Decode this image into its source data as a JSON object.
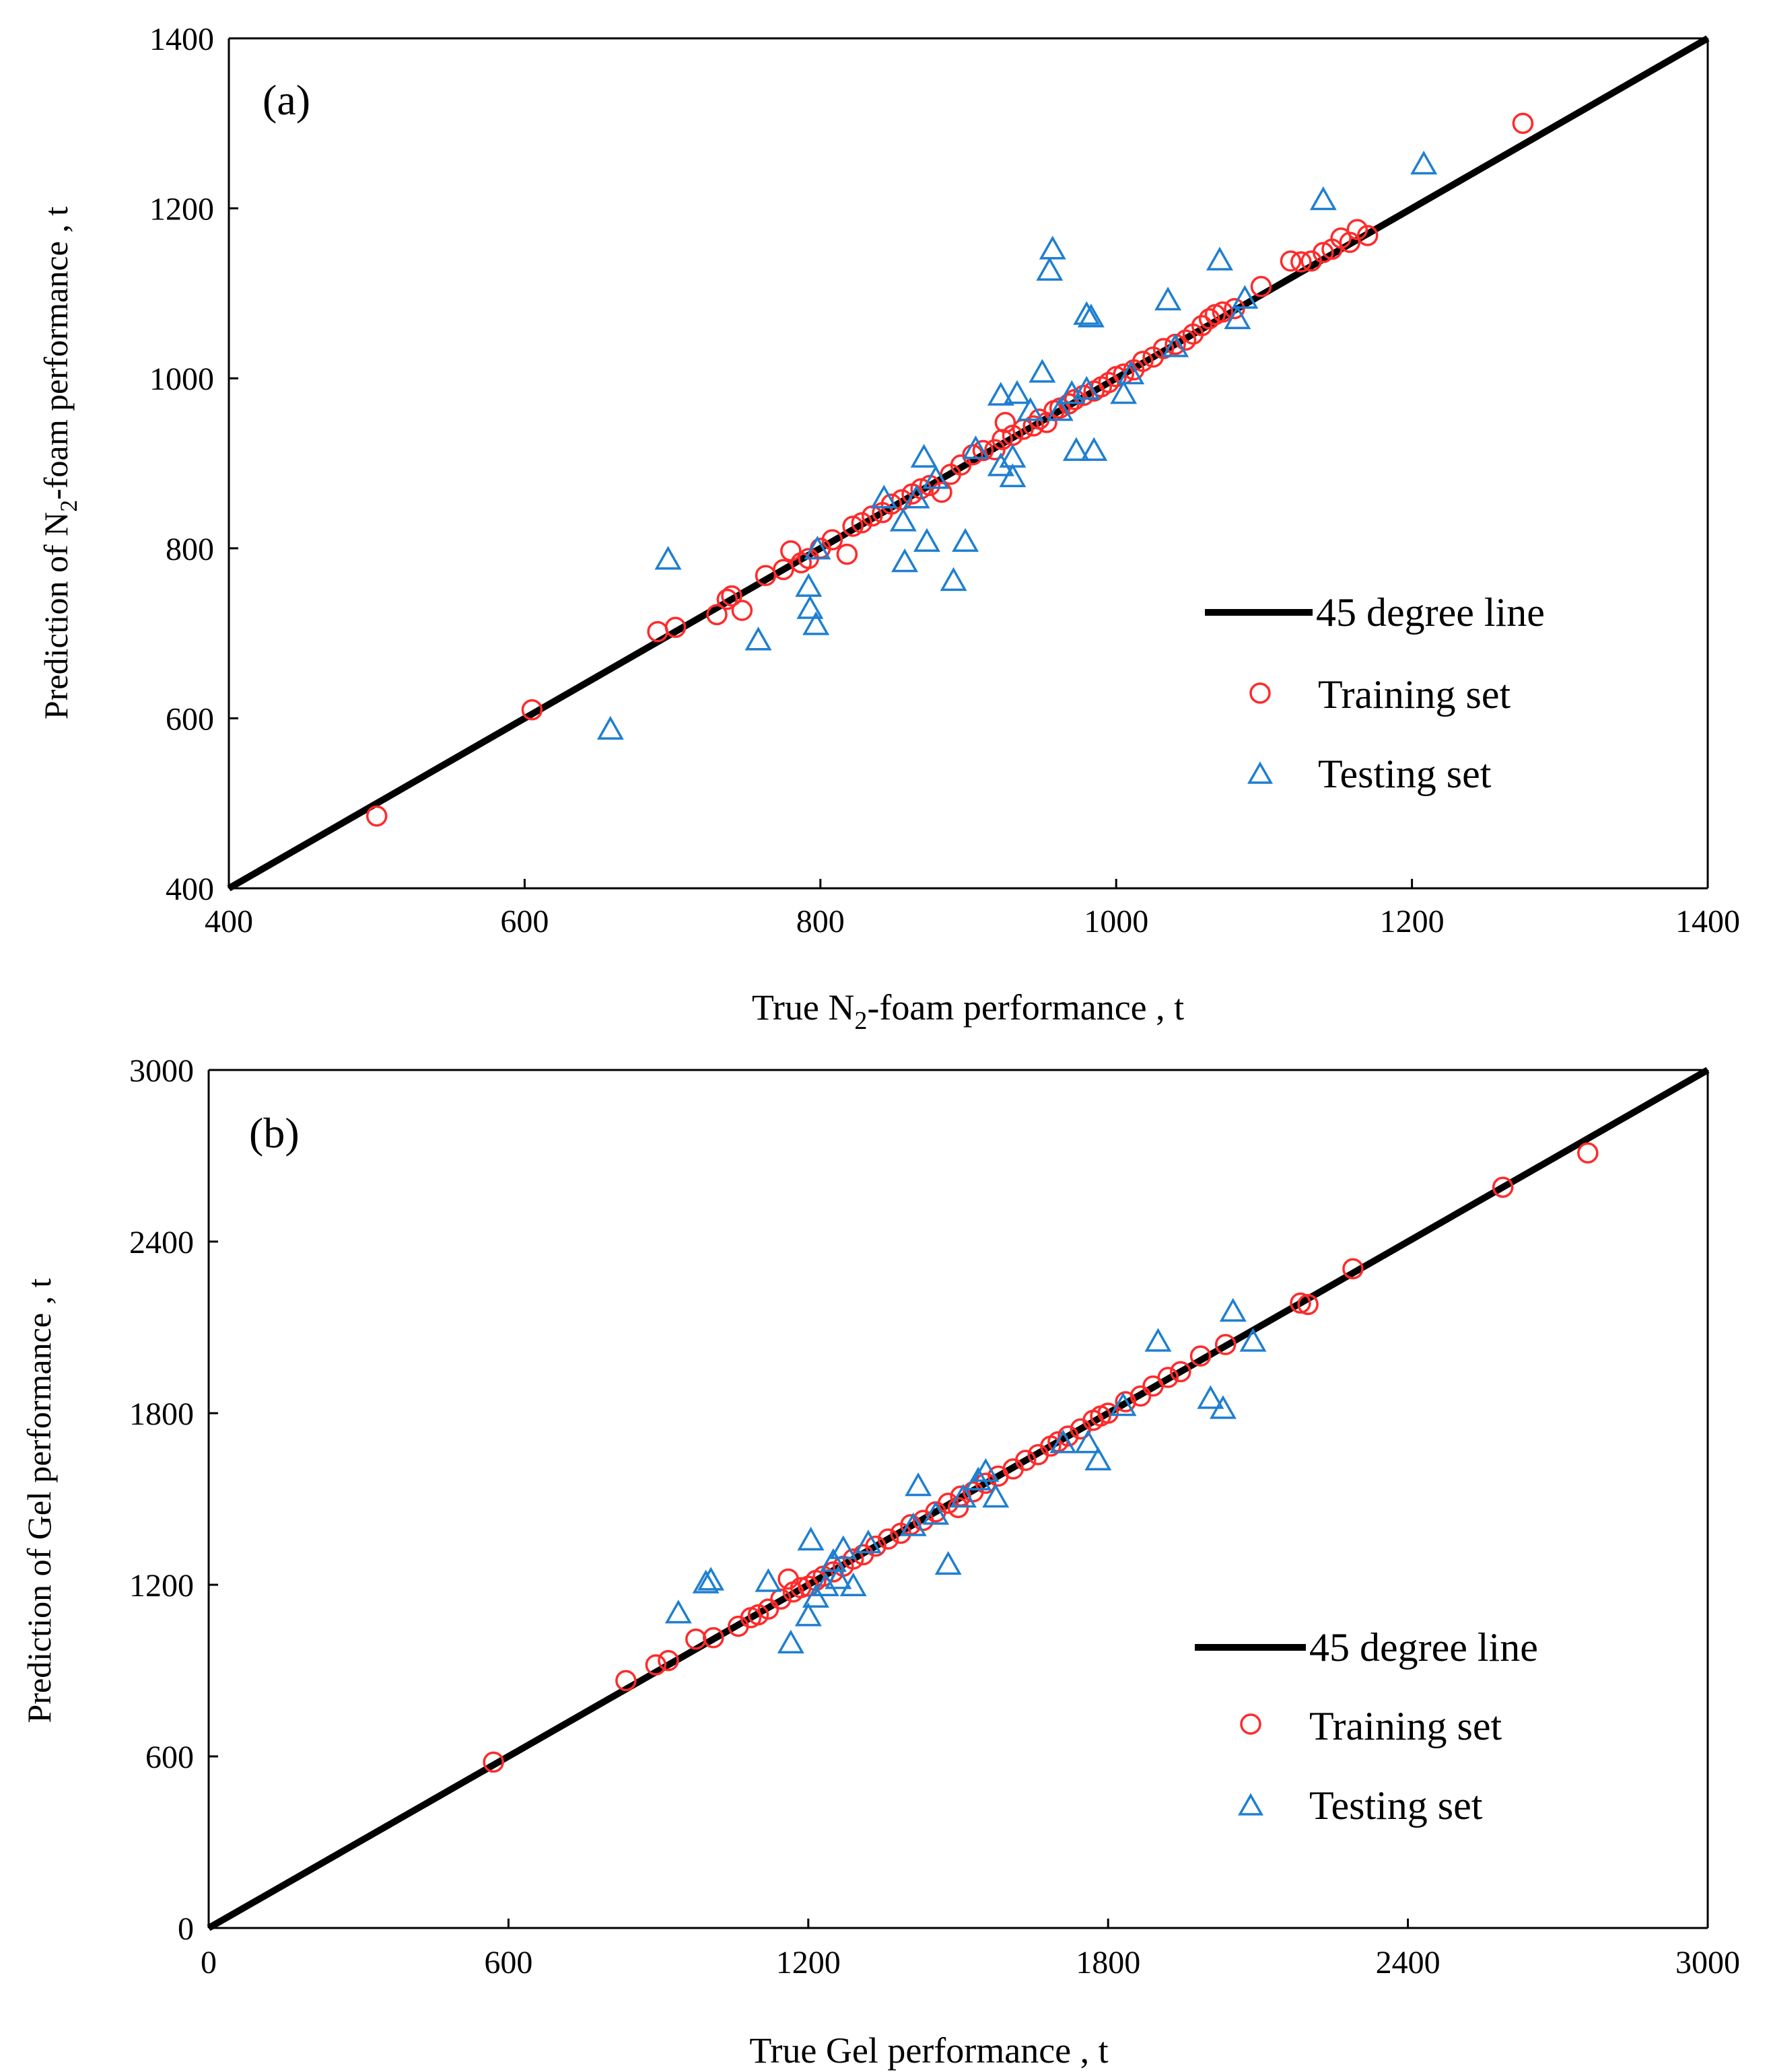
{
  "chart_data": [
    {
      "type": "scatter",
      "panel_label": "(a)",
      "xlabel_prefix": "True N",
      "xlabel_sub": "2",
      "xlabel_suffix": "-foam performance , t",
      "ylabel_prefix": "Prediction of N",
      "ylabel_sub": "2",
      "ylabel_suffix": "-foam performance , t",
      "xlim": [
        400,
        1400
      ],
      "ylim": [
        400,
        1400
      ],
      "xticks": [
        400,
        600,
        800,
        1000,
        1200,
        1400
      ],
      "yticks": [
        400,
        600,
        800,
        1000,
        1200,
        1400
      ],
      "grid": false,
      "legend_position": "lower-right",
      "colors": {
        "line": "#000000",
        "training": "#ff2a2a",
        "testing": "#1e7fd0"
      },
      "line": {
        "name": "45 degree line",
        "x": [
          400,
          1400
        ],
        "y": [
          400,
          1400
        ]
      },
      "series": [
        {
          "name": "Training set",
          "marker": "circle",
          "points": [
            [
              500,
              485
            ],
            [
              605,
              610
            ],
            [
              690,
              702
            ],
            [
              702,
              707
            ],
            [
              730,
              722
            ],
            [
              737,
              740
            ],
            [
              740,
              744
            ],
            [
              747,
              727
            ],
            [
              763,
              768
            ],
            [
              775,
              775
            ],
            [
              780,
              797
            ],
            [
              787,
              783
            ],
            [
              792,
              788
            ],
            [
              800,
              800
            ],
            [
              808,
              810
            ],
            [
              818,
              793
            ],
            [
              822,
              826
            ],
            [
              828,
              830
            ],
            [
              835,
              838
            ],
            [
              842,
              842
            ],
            [
              848,
              852
            ],
            [
              855,
              857
            ],
            [
              862,
              864
            ],
            [
              868,
              870
            ],
            [
              874,
              874
            ],
            [
              882,
              866
            ],
            [
              888,
              887
            ],
            [
              895,
              898
            ],
            [
              903,
              910
            ],
            [
              910,
              915
            ],
            [
              918,
              916
            ],
            [
              923,
              928
            ],
            [
              925,
              948
            ],
            [
              930,
              933
            ],
            [
              937,
              940
            ],
            [
              944,
              944
            ],
            [
              948,
              952
            ],
            [
              953,
              948
            ],
            [
              958,
              962
            ],
            [
              962,
              965
            ],
            [
              968,
              970
            ],
            [
              972,
              975
            ],
            [
              978,
              980
            ],
            [
              985,
              985
            ],
            [
              990,
              990
            ],
            [
              995,
              995
            ],
            [
              1000,
              1002
            ],
            [
              1005,
              1005
            ],
            [
              1012,
              1010
            ],
            [
              1018,
              1020
            ],
            [
              1025,
              1025
            ],
            [
              1032,
              1035
            ],
            [
              1040,
              1040
            ],
            [
              1047,
              1045
            ],
            [
              1052,
              1052
            ],
            [
              1058,
              1062
            ],
            [
              1063,
              1070
            ],
            [
              1067,
              1075
            ],
            [
              1072,
              1078
            ],
            [
              1080,
              1082
            ],
            [
              1098,
              1108
            ],
            [
              1118,
              1138
            ],
            [
              1125,
              1137
            ],
            [
              1132,
              1138
            ],
            [
              1140,
              1148
            ],
            [
              1146,
              1152
            ],
            [
              1152,
              1165
            ],
            [
              1158,
              1160
            ],
            [
              1163,
              1175
            ],
            [
              1170,
              1168
            ],
            [
              1275,
              1300
            ]
          ]
        },
        {
          "name": "Testing set",
          "marker": "triangle",
          "points": [
            [
              658,
              585
            ],
            [
              697,
              785
            ],
            [
              758,
              690
            ],
            [
              792,
              753
            ],
            [
              793,
              727
            ],
            [
              797,
              708
            ],
            [
              798,
              797
            ],
            [
              843,
              857
            ],
            [
              856,
              830
            ],
            [
              857,
              782
            ],
            [
              865,
              857
            ],
            [
              870,
              905
            ],
            [
              872,
              806
            ],
            [
              878,
              880
            ],
            [
              890,
              760
            ],
            [
              898,
              806
            ],
            [
              905,
              915
            ],
            [
              922,
              895
            ],
            [
              922,
              978
            ],
            [
              930,
              905
            ],
            [
              930,
              882
            ],
            [
              933,
              980
            ],
            [
              942,
              960
            ],
            [
              950,
              1005
            ],
            [
              955,
              1125
            ],
            [
              957,
              1150
            ],
            [
              962,
              960
            ],
            [
              970,
              980
            ],
            [
              973,
              913
            ],
            [
              980,
              985
            ],
            [
              980,
              1073
            ],
            [
              983,
              1070
            ],
            [
              985,
              913
            ],
            [
              1005,
              980
            ],
            [
              1010,
              1003
            ],
            [
              1035,
              1090
            ],
            [
              1040,
              1035
            ],
            [
              1070,
              1137
            ],
            [
              1082,
              1068
            ],
            [
              1087,
              1092
            ],
            [
              1140,
              1208
            ],
            [
              1208,
              1250
            ]
          ]
        }
      ]
    },
    {
      "type": "scatter",
      "panel_label": "(b)",
      "xlabel": "True Gel performance , t",
      "ylabel": "Prediction of Gel performance , t",
      "xlim": [
        0,
        3000
      ],
      "ylim": [
        0,
        3000
      ],
      "xticks": [
        0,
        600,
        1200,
        1800,
        2400,
        3000
      ],
      "yticks": [
        0,
        600,
        1200,
        1800,
        2400,
        3000
      ],
      "grid": false,
      "legend_position": "lower-right",
      "colors": {
        "line": "#000000",
        "training": "#ff2a2a",
        "testing": "#1e7fd0"
      },
      "line": {
        "name": "45 degree line",
        "x": [
          0,
          3000
        ],
        "y": [
          0,
          3000
        ]
      },
      "series": [
        {
          "name": "Training set",
          "marker": "circle",
          "points": [
            [
              570,
              580
            ],
            [
              835,
              865
            ],
            [
              895,
              920
            ],
            [
              920,
              935
            ],
            [
              975,
              1010
            ],
            [
              1010,
              1015
            ],
            [
              1060,
              1055
            ],
            [
              1085,
              1085
            ],
            [
              1100,
              1095
            ],
            [
              1120,
              1115
            ],
            [
              1145,
              1150
            ],
            [
              1160,
              1220
            ],
            [
              1170,
              1175
            ],
            [
              1185,
              1190
            ],
            [
              1200,
              1195
            ],
            [
              1215,
              1215
            ],
            [
              1230,
              1230
            ],
            [
              1250,
              1245
            ],
            [
              1270,
              1265
            ],
            [
              1290,
              1290
            ],
            [
              1310,
              1305
            ],
            [
              1335,
              1335
            ],
            [
              1360,
              1360
            ],
            [
              1385,
              1380
            ],
            [
              1405,
              1410
            ],
            [
              1430,
              1425
            ],
            [
              1455,
              1455
            ],
            [
              1480,
              1485
            ],
            [
              1500,
              1470
            ],
            [
              1505,
              1510
            ],
            [
              1530,
              1525
            ],
            [
              1555,
              1555
            ],
            [
              1580,
              1580
            ],
            [
              1610,
              1605
            ],
            [
              1635,
              1635
            ],
            [
              1660,
              1655
            ],
            [
              1685,
              1685
            ],
            [
              1700,
              1700
            ],
            [
              1720,
              1720
            ],
            [
              1745,
              1745
            ],
            [
              1770,
              1775
            ],
            [
              1785,
              1790
            ],
            [
              1800,
              1800
            ],
            [
              1835,
              1840
            ],
            [
              1865,
              1860
            ],
            [
              1890,
              1895
            ],
            [
              1920,
              1925
            ],
            [
              1945,
              1945
            ],
            [
              1985,
              2000
            ],
            [
              2035,
              2040
            ],
            [
              2185,
              2185
            ],
            [
              2200,
              2180
            ],
            [
              2290,
              2305
            ],
            [
              2590,
              2590
            ],
            [
              2760,
              2710
            ]
          ]
        },
        {
          "name": "Testing set",
          "marker": "triangle",
          "points": [
            [
              940,
              1095
            ],
            [
              995,
              1200
            ],
            [
              1005,
              1210
            ],
            [
              1120,
              1205
            ],
            [
              1165,
              990
            ],
            [
              1200,
              1085
            ],
            [
              1205,
              1350
            ],
            [
              1215,
              1150
            ],
            [
              1235,
              1190
            ],
            [
              1250,
              1275
            ],
            [
              1260,
              1215
            ],
            [
              1270,
              1320
            ],
            [
              1290,
              1190
            ],
            [
              1320,
              1340
            ],
            [
              1410,
              1400
            ],
            [
              1420,
              1540
            ],
            [
              1455,
              1440
            ],
            [
              1480,
              1265
            ],
            [
              1510,
              1500
            ],
            [
              1540,
              1560
            ],
            [
              1555,
              1590
            ],
            [
              1575,
              1500
            ],
            [
              1710,
              1690
            ],
            [
              1760,
              1690
            ],
            [
              1780,
              1630
            ],
            [
              1830,
              1820
            ],
            [
              1900,
              2045
            ],
            [
              2005,
              1845
            ],
            [
              2030,
              1810
            ],
            [
              2050,
              2150
            ],
            [
              2090,
              2045
            ]
          ]
        }
      ]
    }
  ]
}
